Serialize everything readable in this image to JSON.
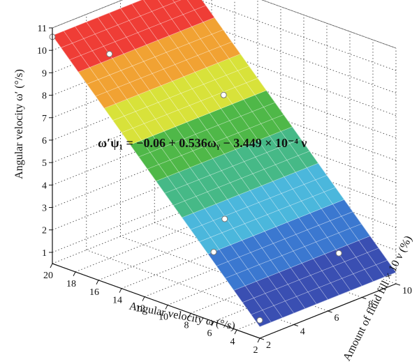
{
  "chart_data": {
    "type": "surface3d",
    "equation": "ω′ψ₁ = −0.06 + 0.536ωᵧ − 3.449 × 10⁻⁴ ν",
    "x_axis": {
      "label": "Angular velocity ω (°/s)",
      "ticks": [
        "2",
        "4",
        "6",
        "8",
        "10",
        "12",
        "14",
        "16",
        "18",
        "20"
      ],
      "range": [
        2,
        20
      ]
    },
    "y_axis": {
      "label": "Amount of fluid fill × 10 ν (%)",
      "ticks": [
        "2",
        "4",
        "6",
        "8",
        "10"
      ],
      "range": [
        2,
        10
      ]
    },
    "z_axis": {
      "label": "Angular velocity ω′ (°/s)",
      "ticks": [
        "1",
        "2",
        "3",
        "4",
        "5",
        "6",
        "7",
        "8",
        "9",
        "10",
        "11"
      ],
      "range": [
        0.5,
        11
      ]
    },
    "surface": {
      "intercept": -0.06,
      "coef_omega": 0.536,
      "coef_fill": -0.0003449
    },
    "color_bands": [
      "#3a4fb2",
      "#3b78d0",
      "#4bb7dc",
      "#46b987",
      "#4fb848",
      "#d8e23a",
      "#f1a233",
      "#ef3d36"
    ],
    "grid": true,
    "points": [
      {
        "omega": 20,
        "fill": 2,
        "value": 10.6
      },
      {
        "omega": 18,
        "fill": 4,
        "value": 9.6
      },
      {
        "omega": 14,
        "fill": 8,
        "value": 7.3
      },
      {
        "omega": 8,
        "fill": 4,
        "value": 4.1
      },
      {
        "omega": 6,
        "fill": 2,
        "value": 3.6
      },
      {
        "omega": 4,
        "fill": 8,
        "value": 2.1
      },
      {
        "omega": 2,
        "fill": 2,
        "value": 1.3
      }
    ]
  }
}
